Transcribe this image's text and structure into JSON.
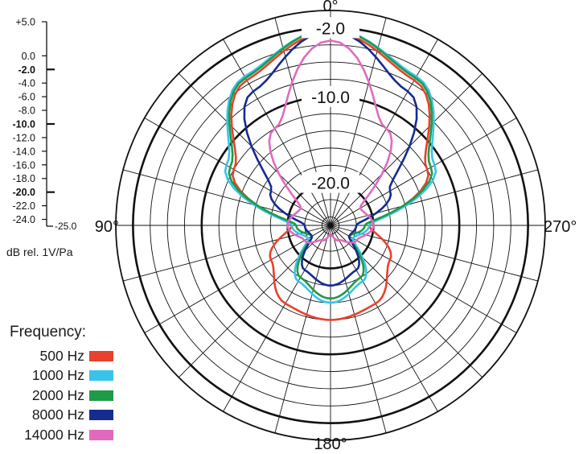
{
  "chart_data": {
    "type": "polar-line",
    "scale_unit": "dB rel. 1V/Pa",
    "scale_labels": [
      "+5.0",
      "0.0",
      "-2.0",
      "-4.0",
      "-6.0",
      "-8.0",
      "-10.0",
      "-12.0",
      "-14.0",
      "-16.0",
      "-18.0",
      "-20.0",
      "-22.0",
      "-24.0",
      "-25.0"
    ],
    "ring_labels": [
      "-2.0",
      "-10.0",
      "-20.0"
    ],
    "angle_labels": [
      "0°",
      "90°",
      "180°",
      "270°"
    ],
    "legend_title": "Frequency:",
    "series": [
      {
        "name": "500 Hz",
        "color": "#e8412c",
        "points": [
          [
            0,
            -2.5
          ],
          [
            30,
            -5.5
          ],
          [
            60,
            -12
          ],
          [
            90,
            -20.5
          ],
          [
            120,
            -17
          ],
          [
            150,
            -14.5
          ],
          [
            180,
            -14
          ]
        ]
      },
      {
        "name": "1000 Hz",
        "color": "#37c4ea",
        "points": [
          [
            0,
            -2.2
          ],
          [
            30,
            -5
          ],
          [
            60,
            -11
          ],
          [
            90,
            -20.5
          ],
          [
            120,
            -22
          ],
          [
            150,
            -17.5
          ],
          [
            180,
            -16
          ]
        ]
      },
      {
        "name": "2000 Hz",
        "color": "#1f9a48",
        "points": [
          [
            0,
            -2.2
          ],
          [
            30,
            -5.2
          ],
          [
            60,
            -11.5
          ],
          [
            90,
            -21
          ],
          [
            120,
            -22.5
          ],
          [
            150,
            -18
          ],
          [
            180,
            -16.5
          ]
        ]
      },
      {
        "name": "8000 Hz",
        "color": "#152c8e",
        "points": [
          [
            0,
            -2.4
          ],
          [
            30,
            -7
          ],
          [
            60,
            -17
          ],
          [
            90,
            -22
          ],
          [
            120,
            -22.5
          ],
          [
            150,
            -19
          ],
          [
            180,
            -18
          ]
        ]
      },
      {
        "name": "14000 Hz",
        "color": "#e06abf",
        "points": [
          [
            0,
            -3.5
          ],
          [
            30,
            -12
          ],
          [
            60,
            -21
          ],
          [
            90,
            -20
          ],
          [
            120,
            -21.5
          ],
          [
            150,
            -23
          ],
          [
            180,
            -24
          ]
        ]
      }
    ]
  }
}
